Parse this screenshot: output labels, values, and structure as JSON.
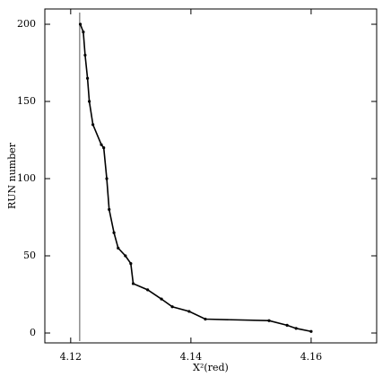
{
  "chart_data": {
    "type": "line",
    "x_label": "X²(red)",
    "y_label": "RUN number",
    "x": [
      4.1216,
      4.1221,
      4.1224,
      4.1228,
      4.1231,
      4.1237,
      4.1251,
      4.1255,
      4.126,
      4.1264,
      4.1272,
      4.1279,
      4.1291,
      4.13,
      4.1304,
      4.1328,
      4.1351,
      4.1369,
      4.1397,
      4.1424,
      4.153,
      4.156,
      4.1575,
      4.16
    ],
    "values": [
      200,
      195,
      180,
      165,
      150,
      135,
      122,
      120,
      100,
      80,
      65,
      55,
      50,
      45,
      32,
      28,
      22,
      17,
      14,
      9,
      8,
      5,
      3,
      1
    ],
    "color": "#000000",
    "reference_x": 4.1215,
    "xlim": [
      4.1157,
      4.1709
    ],
    "xticks": [
      4.12,
      4.14,
      4.16
    ],
    "ylim": [
      -6.4,
      209.9
    ],
    "yticks": [
      0,
      50,
      100,
      150,
      200
    ]
  }
}
